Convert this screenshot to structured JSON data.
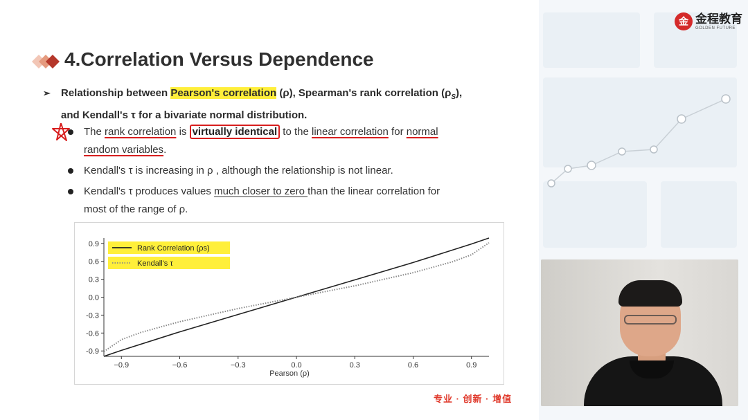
{
  "logo": {
    "cn": "金程教育",
    "en": "GOLDEN FUTURE",
    "mark": "金"
  },
  "slide": {
    "title": "4.Correlation Versus Dependence",
    "bullet1": {
      "a": "Relationship between ",
      "hl": "Pearson's correlation",
      "b": " (ρ), Spearman's rank correlation (ρ",
      "b_sub": "S",
      "c": "),",
      "line2": "and Kendall's τ for a bivariate normal distribution."
    },
    "sub1": {
      "a": "The ",
      "u1": "rank correlation",
      "b": " is ",
      "boxed": "virtually identical",
      "c": " to the ",
      "u2": "linear correlation",
      "d": " for ",
      "u3": "normal",
      "line2_u": "random variables",
      "e": "."
    },
    "sub2": "Kendall's τ is increasing in ρ , although the relationship is not linear.",
    "sub3": {
      "a": "Kendall's τ produces values ",
      "u": "much closer to zero ",
      "b": "than the linear correlation for",
      "line2": "most of the range of ρ."
    },
    "slogan": "专业 · 创新 · 增值"
  },
  "chart_data": {
    "type": "line",
    "xlabel": "Pearson (ρ)",
    "ylabel": "",
    "xlim": [
      -0.99,
      0.99
    ],
    "ylim": [
      -0.99,
      0.99
    ],
    "x_ticks": [
      "-0.9",
      "-0.6",
      "-0.3",
      "0.0",
      "0.3",
      "0.6",
      "0.9"
    ],
    "y_ticks": [
      "0.9",
      "0.6",
      "0.3",
      "0.0",
      "-0.3",
      "-0.6",
      "-0.9"
    ],
    "grid": false,
    "legend_position": "top-left",
    "series": [
      {
        "name": "Rank Correlation (ρs)",
        "style": "solid",
        "color": "#222222",
        "x": [
          -0.99,
          -0.9,
          -0.6,
          -0.3,
          0.0,
          0.3,
          0.6,
          0.9,
          0.99
        ],
        "y": [
          -0.99,
          -0.89,
          -0.58,
          -0.29,
          0.0,
          0.29,
          0.58,
          0.89,
          0.99
        ]
      },
      {
        "name": "Kendall's τ",
        "style": "dotted",
        "color": "#888888",
        "x": [
          -0.99,
          -0.9,
          -0.8,
          -0.6,
          -0.3,
          0.0,
          0.3,
          0.6,
          0.8,
          0.9,
          0.99
        ],
        "y": [
          -0.91,
          -0.71,
          -0.59,
          -0.41,
          -0.19,
          0.0,
          0.19,
          0.41,
          0.59,
          0.71,
          0.91
        ]
      }
    ],
    "legend_highlight": "#ffef3a"
  }
}
